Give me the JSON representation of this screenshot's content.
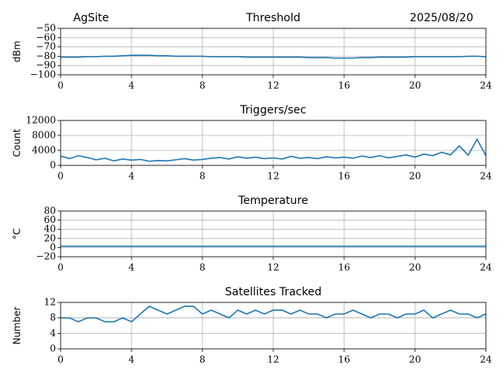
{
  "chart_data": [
    {
      "type": "line",
      "title": "Threshold",
      "left_title": "AgSite",
      "right_title": "2025/08/20",
      "ylabel": "dBm",
      "x": [
        0,
        0.5,
        1,
        1.5,
        2,
        2.5,
        3,
        3.5,
        4,
        4.5,
        5,
        5.5,
        6,
        6.5,
        7,
        7.5,
        8,
        8.5,
        9,
        9.5,
        10,
        10.5,
        11,
        11.5,
        12,
        12.5,
        13,
        13.5,
        14,
        14.5,
        15,
        15.5,
        16,
        16.5,
        17,
        17.5,
        18,
        18.5,
        19,
        19.5,
        20,
        20.5,
        21,
        21.5,
        22,
        22.5,
        23,
        23.5,
        24
      ],
      "series": [
        {
          "color": "#1f77b4",
          "values": [
            -81,
            -81,
            -81,
            -80.5,
            -80.5,
            -80,
            -80,
            -79.5,
            -79,
            -79,
            -79,
            -79.5,
            -79.5,
            -80,
            -80,
            -80,
            -80,
            -80.5,
            -80.5,
            -80.5,
            -80.5,
            -81,
            -81,
            -81,
            -81,
            -81,
            -81,
            -81,
            -81.5,
            -81.5,
            -81.5,
            -82,
            -82,
            -82,
            -81.5,
            -81.5,
            -81,
            -81,
            -81,
            -81,
            -80.5,
            -80.5,
            -80.5,
            -80.5,
            -80.5,
            -80.5,
            -80,
            -80,
            -80.5
          ]
        }
      ],
      "xlim": [
        0,
        24
      ],
      "xticks": [
        0,
        4,
        8,
        12,
        16,
        20,
        24
      ],
      "ylim": [
        -100,
        -50
      ],
      "yticks": [
        {
          "value": -100,
          "label": "−100"
        },
        {
          "value": -90,
          "label": "−90"
        },
        {
          "value": -80,
          "label": "−80"
        },
        {
          "value": -70,
          "label": "−70"
        },
        {
          "value": -60,
          "label": "−60"
        },
        {
          "value": -50,
          "label": "−50"
        }
      ],
      "grid": true
    },
    {
      "type": "line",
      "title": "Triggers/sec",
      "ylabel": "Count",
      "x": [
        0,
        0.5,
        1,
        1.5,
        2,
        2.5,
        3,
        3.5,
        4,
        4.5,
        5,
        5.5,
        6,
        6.5,
        7,
        7.5,
        8,
        8.5,
        9,
        9.5,
        10,
        10.5,
        11,
        11.5,
        12,
        12.5,
        13,
        13.5,
        14,
        14.5,
        15,
        15.5,
        16,
        16.5,
        17,
        17.5,
        18,
        18.5,
        19,
        19.5,
        20,
        20.5,
        21,
        21.5,
        22,
        22.5,
        23,
        23.5,
        24
      ],
      "series": [
        {
          "color": "#1f77b4",
          "values": [
            2500,
            1800,
            2600,
            2100,
            1500,
            1900,
            1200,
            1700,
            1400,
            1600,
            1100,
            1300,
            1200,
            1500,
            1800,
            1400,
            1600,
            1900,
            2100,
            1700,
            2300,
            1900,
            2200,
            1800,
            2000,
            1700,
            2400,
            1900,
            2100,
            1800,
            2300,
            2000,
            2200,
            1900,
            2500,
            2100,
            2600,
            2000,
            2400,
            2800,
            2200,
            3000,
            2600,
            3500,
            2800,
            5200,
            2700,
            7000,
            2600
          ]
        }
      ],
      "xlim": [
        0,
        24
      ],
      "xticks": [
        0,
        4,
        8,
        12,
        16,
        20,
        24
      ],
      "ylim": [
        0,
        12000
      ],
      "yticks": [
        0,
        4000,
        8000,
        12000
      ],
      "grid": true
    },
    {
      "type": "line",
      "title": "Temperature",
      "ylabel": "°C",
      "x": [
        0,
        24
      ],
      "series": [
        {
          "color": "#1f77b4",
          "values": [
            3,
            3
          ]
        }
      ],
      "xlim": [
        0,
        24
      ],
      "xticks": [
        0,
        4,
        8,
        12,
        16,
        20,
        24
      ],
      "ylim": [
        -20,
        80
      ],
      "yticks": [
        {
          "value": -20,
          "label": "−20"
        },
        0,
        20,
        40,
        60,
        80
      ],
      "grid": true
    },
    {
      "type": "line",
      "title": "Satellites Tracked",
      "ylabel": "Number",
      "x": [
        0,
        0.5,
        1,
        1.5,
        2,
        2.5,
        3,
        3.5,
        4,
        4.5,
        5,
        5.5,
        6,
        6.5,
        7,
        7.5,
        8,
        8.5,
        9,
        9.5,
        10,
        10.5,
        11,
        11.5,
        12,
        12.5,
        13,
        13.5,
        14,
        14.5,
        15,
        15.5,
        16,
        16.5,
        17,
        17.5,
        18,
        18.5,
        19,
        19.5,
        20,
        20.5,
        21,
        21.5,
        22,
        22.5,
        23,
        23.5,
        24
      ],
      "series": [
        {
          "color": "#1f77b4",
          "values": [
            8,
            8,
            7,
            8,
            8,
            7,
            7,
            8,
            7,
            9,
            11,
            10,
            9,
            10,
            11,
            11,
            9,
            10,
            9,
            8,
            10,
            9,
            10,
            9,
            10,
            10,
            9,
            10,
            9,
            9,
            8,
            9,
            9,
            10,
            9,
            8,
            9,
            9,
            8,
            9,
            9,
            10,
            8,
            9,
            10,
            9,
            9,
            8,
            9
          ]
        }
      ],
      "xlim": [
        0,
        24
      ],
      "xticks": [
        0,
        4,
        8,
        12,
        16,
        20,
        24
      ],
      "ylim": [
        0,
        12
      ],
      "yticks": [
        0,
        4,
        8,
        12
      ],
      "grid": true
    }
  ]
}
